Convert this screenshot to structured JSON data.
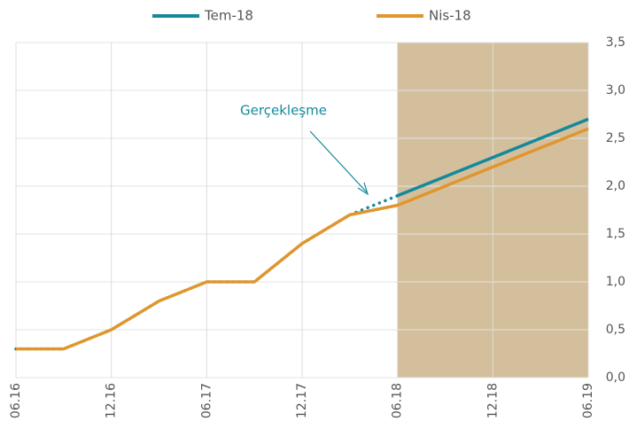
{
  "chart_data": {
    "type": "line",
    "categories": [
      "06.16",
      null,
      "12.16",
      null,
      "06.17",
      null,
      "12.17",
      null,
      "06.18",
      null,
      "12.18",
      null,
      "06.19"
    ],
    "series": [
      {
        "name": "Tem-18",
        "color": "#14899c",
        "values": [
          0.3,
          0.3,
          0.5,
          0.8,
          1.0,
          1.0,
          1.4,
          1.7,
          1.9,
          2.1,
          2.3,
          2.5,
          2.7
        ]
      },
      {
        "name": "Nis-18",
        "color": "#e0962e",
        "values": [
          0.3,
          0.3,
          0.5,
          0.8,
          1.0,
          1.0,
          1.4,
          1.7,
          1.8,
          2.0,
          2.2,
          2.4,
          2.6
        ]
      }
    ],
    "ylim": [
      0,
      3.5
    ],
    "yticks": [
      {
        "value": 0,
        "label": "0,0"
      },
      {
        "value": 0.5,
        "label": "0,5"
      },
      {
        "value": 1,
        "label": "1,0"
      },
      {
        "value": 1.5,
        "label": "1,5"
      },
      {
        "value": 2,
        "label": "2,0"
      },
      {
        "value": 2.5,
        "label": "2,5"
      },
      {
        "value": 3,
        "label": "3,0"
      },
      {
        "value": 3.5,
        "label": "3,5"
      }
    ],
    "grid": true,
    "shade": {
      "from": "06.18",
      "to": "06.19",
      "color": "#d4bf9c"
    },
    "annotation": "Gerçekleşme"
  }
}
